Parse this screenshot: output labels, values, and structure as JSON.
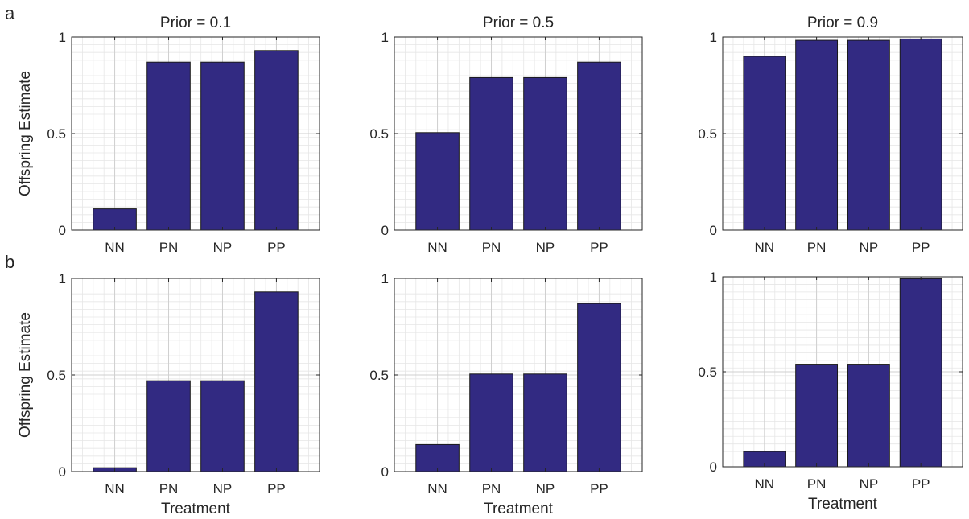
{
  "figure": {
    "row_labels": [
      "a",
      "b"
    ]
  },
  "colors": {
    "bar_fill": "#322a82",
    "bar_edge": "#1a1a1a",
    "axis": "#262626",
    "grid_major": "#cfcfcf",
    "grid_minor": "#e6e6e6"
  },
  "chart_data": [
    {
      "type": "bar",
      "title": "Prior = 0.1",
      "xlabel": "",
      "ylabel": "Offspring Estimate",
      "categories": [
        "NN",
        "PN",
        "NP",
        "PP"
      ],
      "values": [
        0.11,
        0.87,
        0.87,
        0.93
      ],
      "ylim": [
        0,
        1
      ],
      "yticks": [
        0,
        0.5,
        1
      ],
      "ytick_labels": [
        "0",
        "0.5",
        "1"
      ],
      "grid": "major-and-minor",
      "legend": "none"
    },
    {
      "type": "bar",
      "title": "Prior = 0.5",
      "xlabel": "",
      "ylabel": "",
      "categories": [
        "NN",
        "PN",
        "NP",
        "PP"
      ],
      "values": [
        0.505,
        0.79,
        0.79,
        0.87
      ],
      "ylim": [
        0,
        1
      ],
      "yticks": [
        0,
        0.5,
        1
      ],
      "ytick_labels": [
        "0",
        "0.5",
        "1"
      ],
      "grid": "major-and-minor",
      "legend": "none"
    },
    {
      "type": "bar",
      "title": "Prior = 0.9",
      "xlabel": "",
      "ylabel": "",
      "categories": [
        "NN",
        "PN",
        "NP",
        "PP"
      ],
      "values": [
        0.9,
        0.983,
        0.983,
        0.99
      ],
      "ylim": [
        0,
        1
      ],
      "yticks": [
        0,
        0.5,
        1
      ],
      "ytick_labels": [
        "0",
        "0.5",
        "1"
      ],
      "grid": "major-and-minor",
      "legend": "none"
    },
    {
      "type": "bar",
      "title": "",
      "xlabel": "Treatment",
      "ylabel": "Offspring Estimate",
      "categories": [
        "NN",
        "PN",
        "NP",
        "PP"
      ],
      "values": [
        0.02,
        0.47,
        0.47,
        0.93
      ],
      "ylim": [
        0,
        1
      ],
      "yticks": [
        0,
        0.5,
        1
      ],
      "ytick_labels": [
        "0",
        "0.5",
        "1"
      ],
      "grid": "major-and-minor",
      "legend": "none"
    },
    {
      "type": "bar",
      "title": "",
      "xlabel": "Treatment",
      "ylabel": "",
      "categories": [
        "NN",
        "PN",
        "NP",
        "PP"
      ],
      "values": [
        0.14,
        0.505,
        0.505,
        0.87
      ],
      "ylim": [
        0,
        1
      ],
      "yticks": [
        0,
        0.5,
        1
      ],
      "ytick_labels": [
        "0",
        "0.5",
        "1"
      ],
      "grid": "major-and-minor",
      "legend": "none"
    },
    {
      "type": "bar",
      "title": "",
      "xlabel": "Treatment",
      "ylabel": "",
      "categories": [
        "NN",
        "PN",
        "NP",
        "PP"
      ],
      "values": [
        0.08,
        0.54,
        0.54,
        0.99
      ],
      "ylim": [
        0,
        1
      ],
      "yticks": [
        0,
        0.5,
        1
      ],
      "ytick_labels": [
        "0",
        "0.5",
        "1"
      ],
      "grid": "major-and-minor",
      "legend": "none"
    }
  ]
}
